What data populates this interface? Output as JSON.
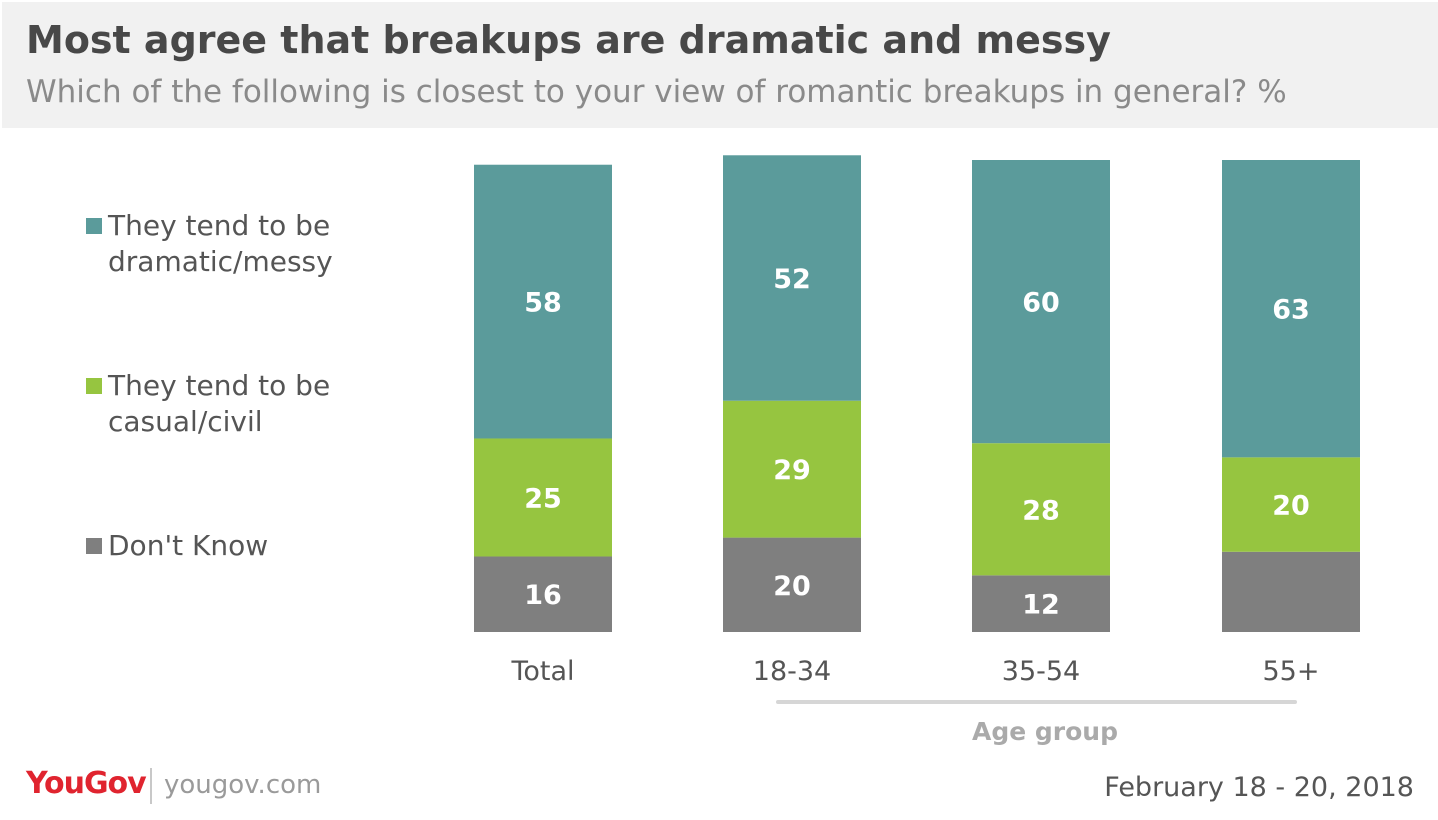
{
  "header": {
    "title": "Most agree that breakups are dramatic and messy",
    "subtitle": "Which of the following is closest to your view of romantic breakups in general? %"
  },
  "legend": {
    "items": [
      {
        "label": "They tend to be dramatic/messy",
        "color": "#5b9b9b"
      },
      {
        "label": "They tend to be casual/civil",
        "color": "#96c540"
      },
      {
        "label": "Don't Know",
        "color": "#7f7f7f"
      }
    ]
  },
  "chart_data": {
    "type": "bar",
    "stacked": true,
    "title": "Most agree that breakups are dramatic and messy",
    "subtitle": "Which of the following is closest to your view of romantic breakups in general? %",
    "categories": [
      "Total",
      "18-34",
      "35-54",
      "55+"
    ],
    "group_label": "Age group",
    "group_categories": [
      "18-34",
      "35-54",
      "55+"
    ],
    "series": [
      {
        "name": "They tend to be dramatic/messy",
        "color": "#5b9b9b",
        "values": [
          58,
          52,
          60,
          63
        ]
      },
      {
        "name": "They tend to be casual/civil",
        "color": "#96c540",
        "values": [
          25,
          29,
          28,
          20
        ]
      },
      {
        "name": "Don't Know",
        "color": "#7f7f7f",
        "values": [
          16,
          20,
          12,
          17
        ],
        "labels": [
          "16",
          "20",
          "12",
          ""
        ]
      }
    ],
    "ylim": [
      0,
      100
    ],
    "grid": false,
    "legend_position": "left"
  },
  "footer": {
    "brand": "YouGov",
    "url": "yougov.com",
    "date": "February 18 - 20, 2018"
  }
}
